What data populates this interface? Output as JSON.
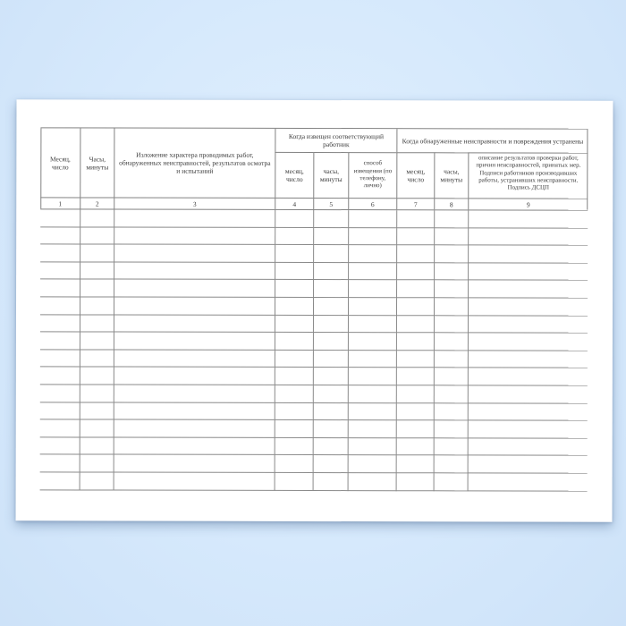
{
  "page": {
    "background_color": "#d6e9fc",
    "sheet_color": "#ffffff",
    "line_color": "#828282",
    "text_color": "#3c3c3c"
  },
  "table": {
    "columns": {
      "month_day": "Месяц, число",
      "hours_minutes": "Часы, минуты",
      "work_description": "Изложение характера проводимых работ, обнаруженных неисправностей, результатов осмотра и испытаний",
      "notified_month_day": "месяц, число",
      "notified_hours_minutes": "часы, минуты",
      "notification_method": "способ извещения (по телефону, лично)",
      "fixed_month_day": "месяц, число",
      "fixed_hours_minutes": "часы, минуты",
      "results_description": "описание результатов проверки работ, причин неисправностей, принятых мер. Подписи работников производивших работы, устранивших неисправности. Подпись ДСЦП"
    },
    "groups": {
      "notified": "Когда извещен соответствующий работник",
      "fixed": "Когда обнаруженные неисправности и повреждения устранены"
    },
    "column_numbers": [
      "1",
      "2",
      "3",
      "4",
      "5",
      "6",
      "7",
      "8",
      "9"
    ],
    "data_row_count": 16,
    "column_count": 9
  }
}
